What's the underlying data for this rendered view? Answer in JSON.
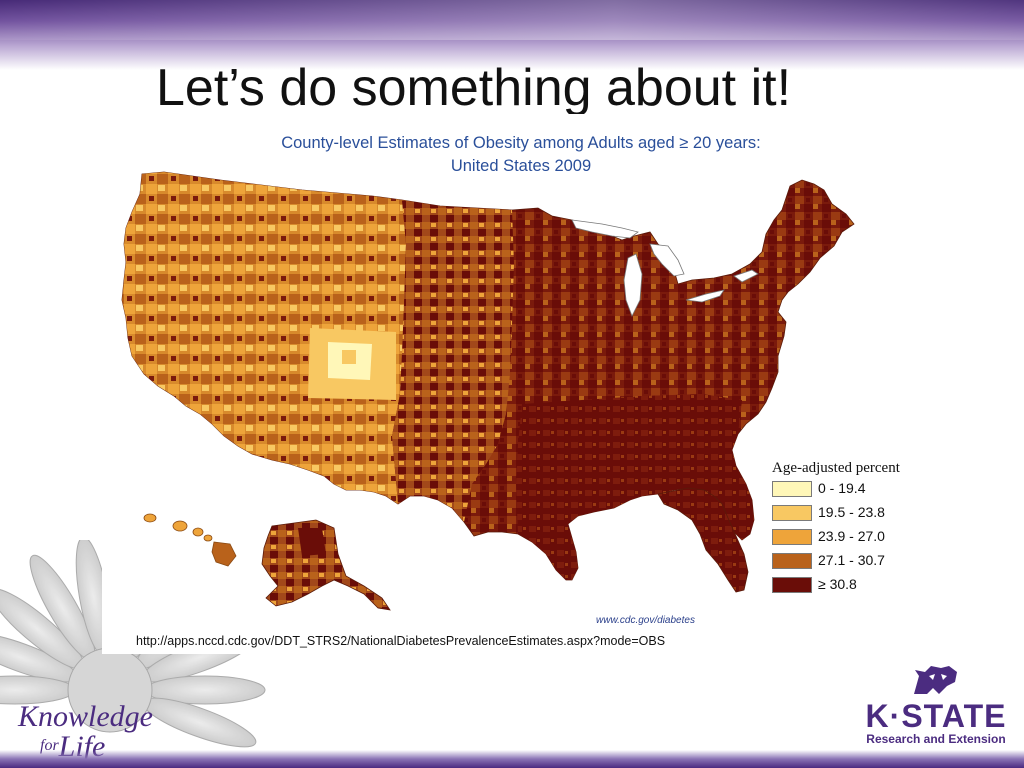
{
  "slide": {
    "title": "Let’s do something about it!"
  },
  "map": {
    "title_line1": "County-level Estimates of Obesity among Adults aged ≥ 20 years:",
    "title_line2": "United States 2009",
    "credit": "www.cdc.gov/diabetes",
    "source_url": "http://apps.nccd.cdc.gov/DDT_STRS2/NationalDiabetesPrevalenceEstimates.aspx?mode=OBS",
    "legend": {
      "title": "Age-adjusted percent",
      "items": [
        {
          "label": "0 - 19.4",
          "color": "#fff7b8"
        },
        {
          "label": "19.5 - 23.8",
          "color": "#f8c862"
        },
        {
          "label": "23.9 - 27.0",
          "color": "#eea43a"
        },
        {
          "label": "27.1 - 30.7",
          "color": "#b9621b"
        },
        {
          "label": "≥ 30.8",
          "color": "#6a0d08"
        }
      ]
    }
  },
  "logos": {
    "knowledge_line1": "Knowledge",
    "knowledge_for": "for",
    "knowledge_life": "Life",
    "kstate_name": "K·STATE",
    "kstate_sub": "Research and Extension"
  },
  "colors": {
    "brand_purple": "#4b2c80",
    "map_title_blue": "#2a4f9a"
  },
  "icons": {
    "sunflower": "sunflower-watermark-icon",
    "wildcat": "powercat-icon"
  }
}
